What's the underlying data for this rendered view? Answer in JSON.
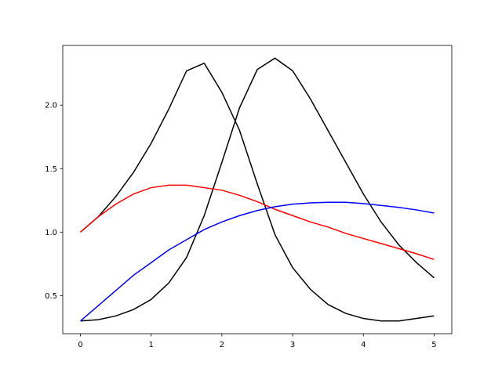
{
  "chart_data": {
    "type": "line",
    "x": [
      0,
      0.25,
      0.5,
      0.75,
      1,
      1.25,
      1.5,
      1.75,
      2,
      2.25,
      2.5,
      2.75,
      3,
      3.25,
      3.5,
      3.75,
      4,
      4.25,
      4.5,
      4.75,
      5
    ],
    "series": [
      {
        "color": "#000000",
        "values": [
          1.0,
          1.12,
          1.28,
          1.47,
          1.7,
          1.97,
          2.27,
          2.33,
          2.1,
          1.8,
          1.38,
          0.98,
          0.72,
          0.55,
          0.43,
          0.36,
          0.32,
          0.3,
          0.3,
          0.32,
          0.34
        ]
      },
      {
        "color": "#000000",
        "values": [
          0.3,
          0.31,
          0.34,
          0.39,
          0.47,
          0.6,
          0.8,
          1.13,
          1.55,
          1.98,
          2.28,
          2.37,
          2.27,
          2.05,
          1.8,
          1.55,
          1.3,
          1.08,
          0.9,
          0.76,
          0.64
        ]
      },
      {
        "color": "#ff0000",
        "values": [
          1.0,
          1.12,
          1.22,
          1.3,
          1.35,
          1.37,
          1.37,
          1.35,
          1.33,
          1.29,
          1.24,
          1.18,
          1.13,
          1.08,
          1.04,
          0.99,
          0.95,
          0.91,
          0.87,
          0.83,
          0.785
        ]
      },
      {
        "color": "#0000ff",
        "values": [
          0.3,
          0.42,
          0.54,
          0.66,
          0.76,
          0.86,
          0.94,
          1.02,
          1.08,
          1.13,
          1.17,
          1.2,
          1.22,
          1.23,
          1.235,
          1.235,
          1.225,
          1.21,
          1.195,
          1.175,
          1.15
        ]
      }
    ],
    "xlim": [
      -0.25,
      5.25
    ],
    "ylim": [
      0.2,
      2.47
    ],
    "xticks": [
      0,
      1,
      2,
      3,
      4,
      5
    ],
    "yticks": [
      0.5,
      {
        "value": 1,
        "label": "1.0"
      },
      1.5,
      {
        "value": 2,
        "label": "2.0"
      }
    ]
  }
}
